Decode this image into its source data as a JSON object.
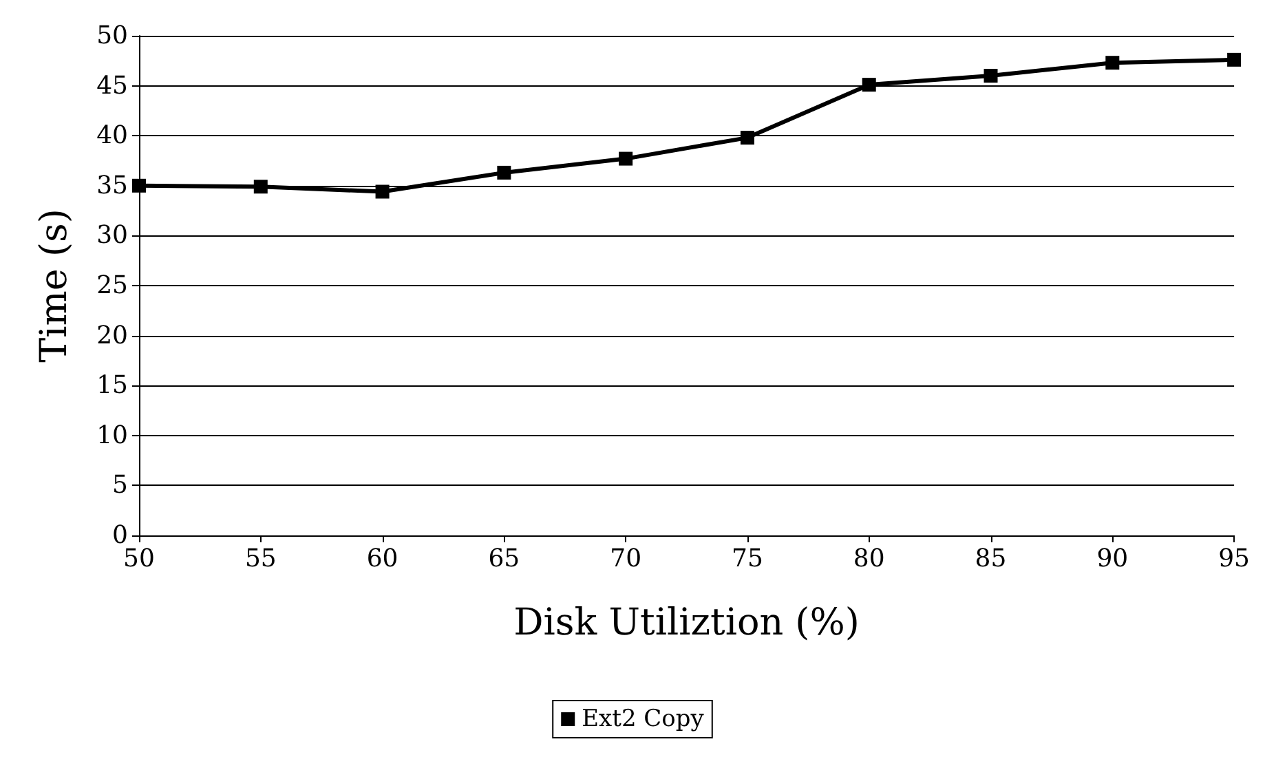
{
  "chart_data": {
    "type": "line",
    "xlabel": "Disk Utiliztion (%)",
    "ylabel": "Time (s)",
    "x": [
      50,
      55,
      60,
      65,
      70,
      75,
      80,
      85,
      90,
      95
    ],
    "series": [
      {
        "name": "Ext2 Copy",
        "color": "#000000",
        "values": [
          35.0,
          34.9,
          34.4,
          36.3,
          37.7,
          39.8,
          45.1,
          46.0,
          47.3,
          47.6
        ]
      }
    ],
    "xlim": [
      50,
      95
    ],
    "xticks": [
      50,
      55,
      60,
      65,
      70,
      75,
      80,
      85,
      90,
      95
    ],
    "ylim": [
      0,
      50
    ],
    "yticks": [
      0,
      5,
      10,
      15,
      20,
      25,
      30,
      35,
      40,
      45,
      50
    ],
    "grid": "y",
    "legend": "bottom",
    "marker": "square",
    "line_style": "solid"
  }
}
